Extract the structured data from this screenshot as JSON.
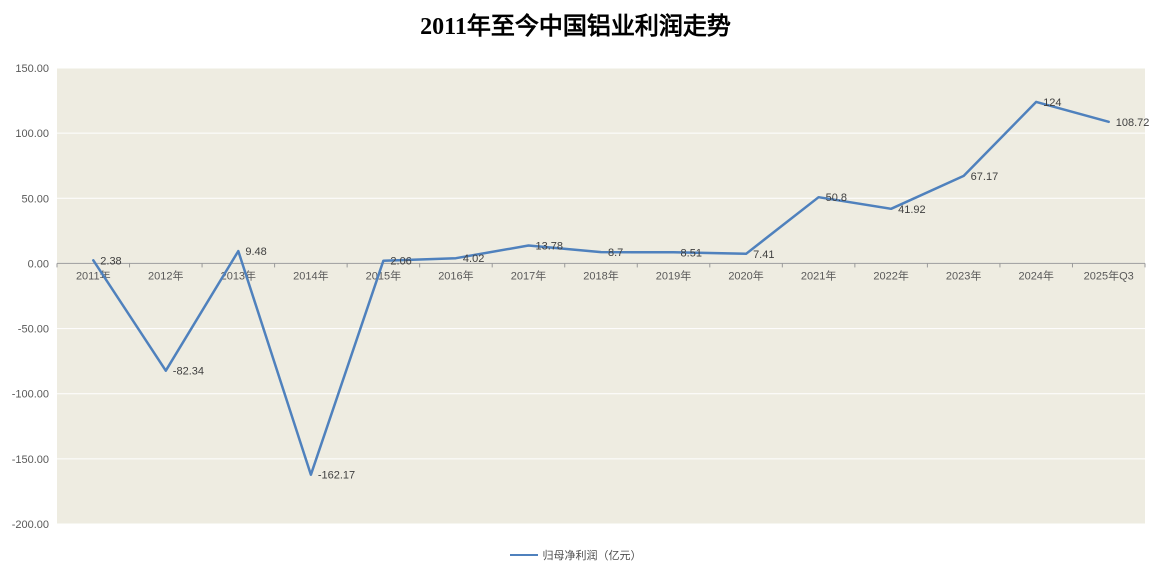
{
  "chart_data": {
    "type": "line",
    "title": "2011年至今中国铝业利润走势",
    "series_name": "归母净利润（亿元）",
    "categories": [
      "2011年",
      "2012年",
      "2013年",
      "2014年",
      "2015年",
      "2016年",
      "2017年",
      "2018年",
      "2019年",
      "2020年",
      "2021年",
      "2022年",
      "2023年",
      "2024年",
      "2025年Q3"
    ],
    "values": [
      2.38,
      -82.34,
      9.48,
      -162.17,
      2.06,
      4.02,
      13.78,
      8.7,
      8.51,
      7.41,
      50.8,
      41.92,
      67.17,
      124,
      108.72
    ],
    "labels": [
      "2.38",
      "-82.34",
      "9.48",
      "-162.17",
      "2.06",
      "4.02",
      "13.78",
      "8.7",
      "8.51",
      "7.41",
      "50.8",
      "41.92",
      "67.17",
      "124",
      "108.72"
    ],
    "ylim": [
      -200,
      150
    ],
    "ytick_step": 50,
    "yticks": [
      "150.00",
      "100.00",
      "50.00",
      "0.00",
      "-50.00",
      "-100.00",
      "-150.00",
      "-200.00"
    ],
    "legend_position": "bottom",
    "grid": "horizontal",
    "line_color": "#4f81bd",
    "plot_bg": "#eeece1",
    "gridline_color": "#ffffff",
    "axis_color": "#9a9a9a"
  }
}
